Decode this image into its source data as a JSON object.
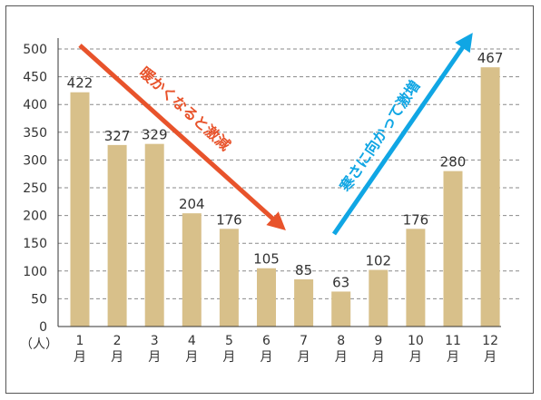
{
  "chart_data": {
    "type": "bar",
    "categories": [
      "1\n月",
      "2\n月",
      "3\n月",
      "4\n月",
      "5\n月",
      "6\n月",
      "7\n月",
      "8\n月",
      "9\n月",
      "10\n月",
      "11\n月",
      "12\n月"
    ],
    "values": [
      422,
      327,
      329,
      204,
      176,
      105,
      85,
      63,
      102,
      176,
      280,
      467
    ],
    "ylim": [
      0,
      500
    ],
    "yticks": [
      0,
      50,
      100,
      150,
      200,
      250,
      300,
      350,
      400,
      450,
      500
    ],
    "y_unit": "（人）",
    "grid": true,
    "colors": {
      "bar": "#d8c08a",
      "down_arrow": "#e8532b",
      "up_arrow": "#10a6e4",
      "grid": "#8a8a8a"
    },
    "annotations": [
      {
        "text": "暖かくなると激減",
        "style": "arrow-down"
      },
      {
        "text": "寒さに向かって激増",
        "style": "arrow-up"
      }
    ]
  }
}
